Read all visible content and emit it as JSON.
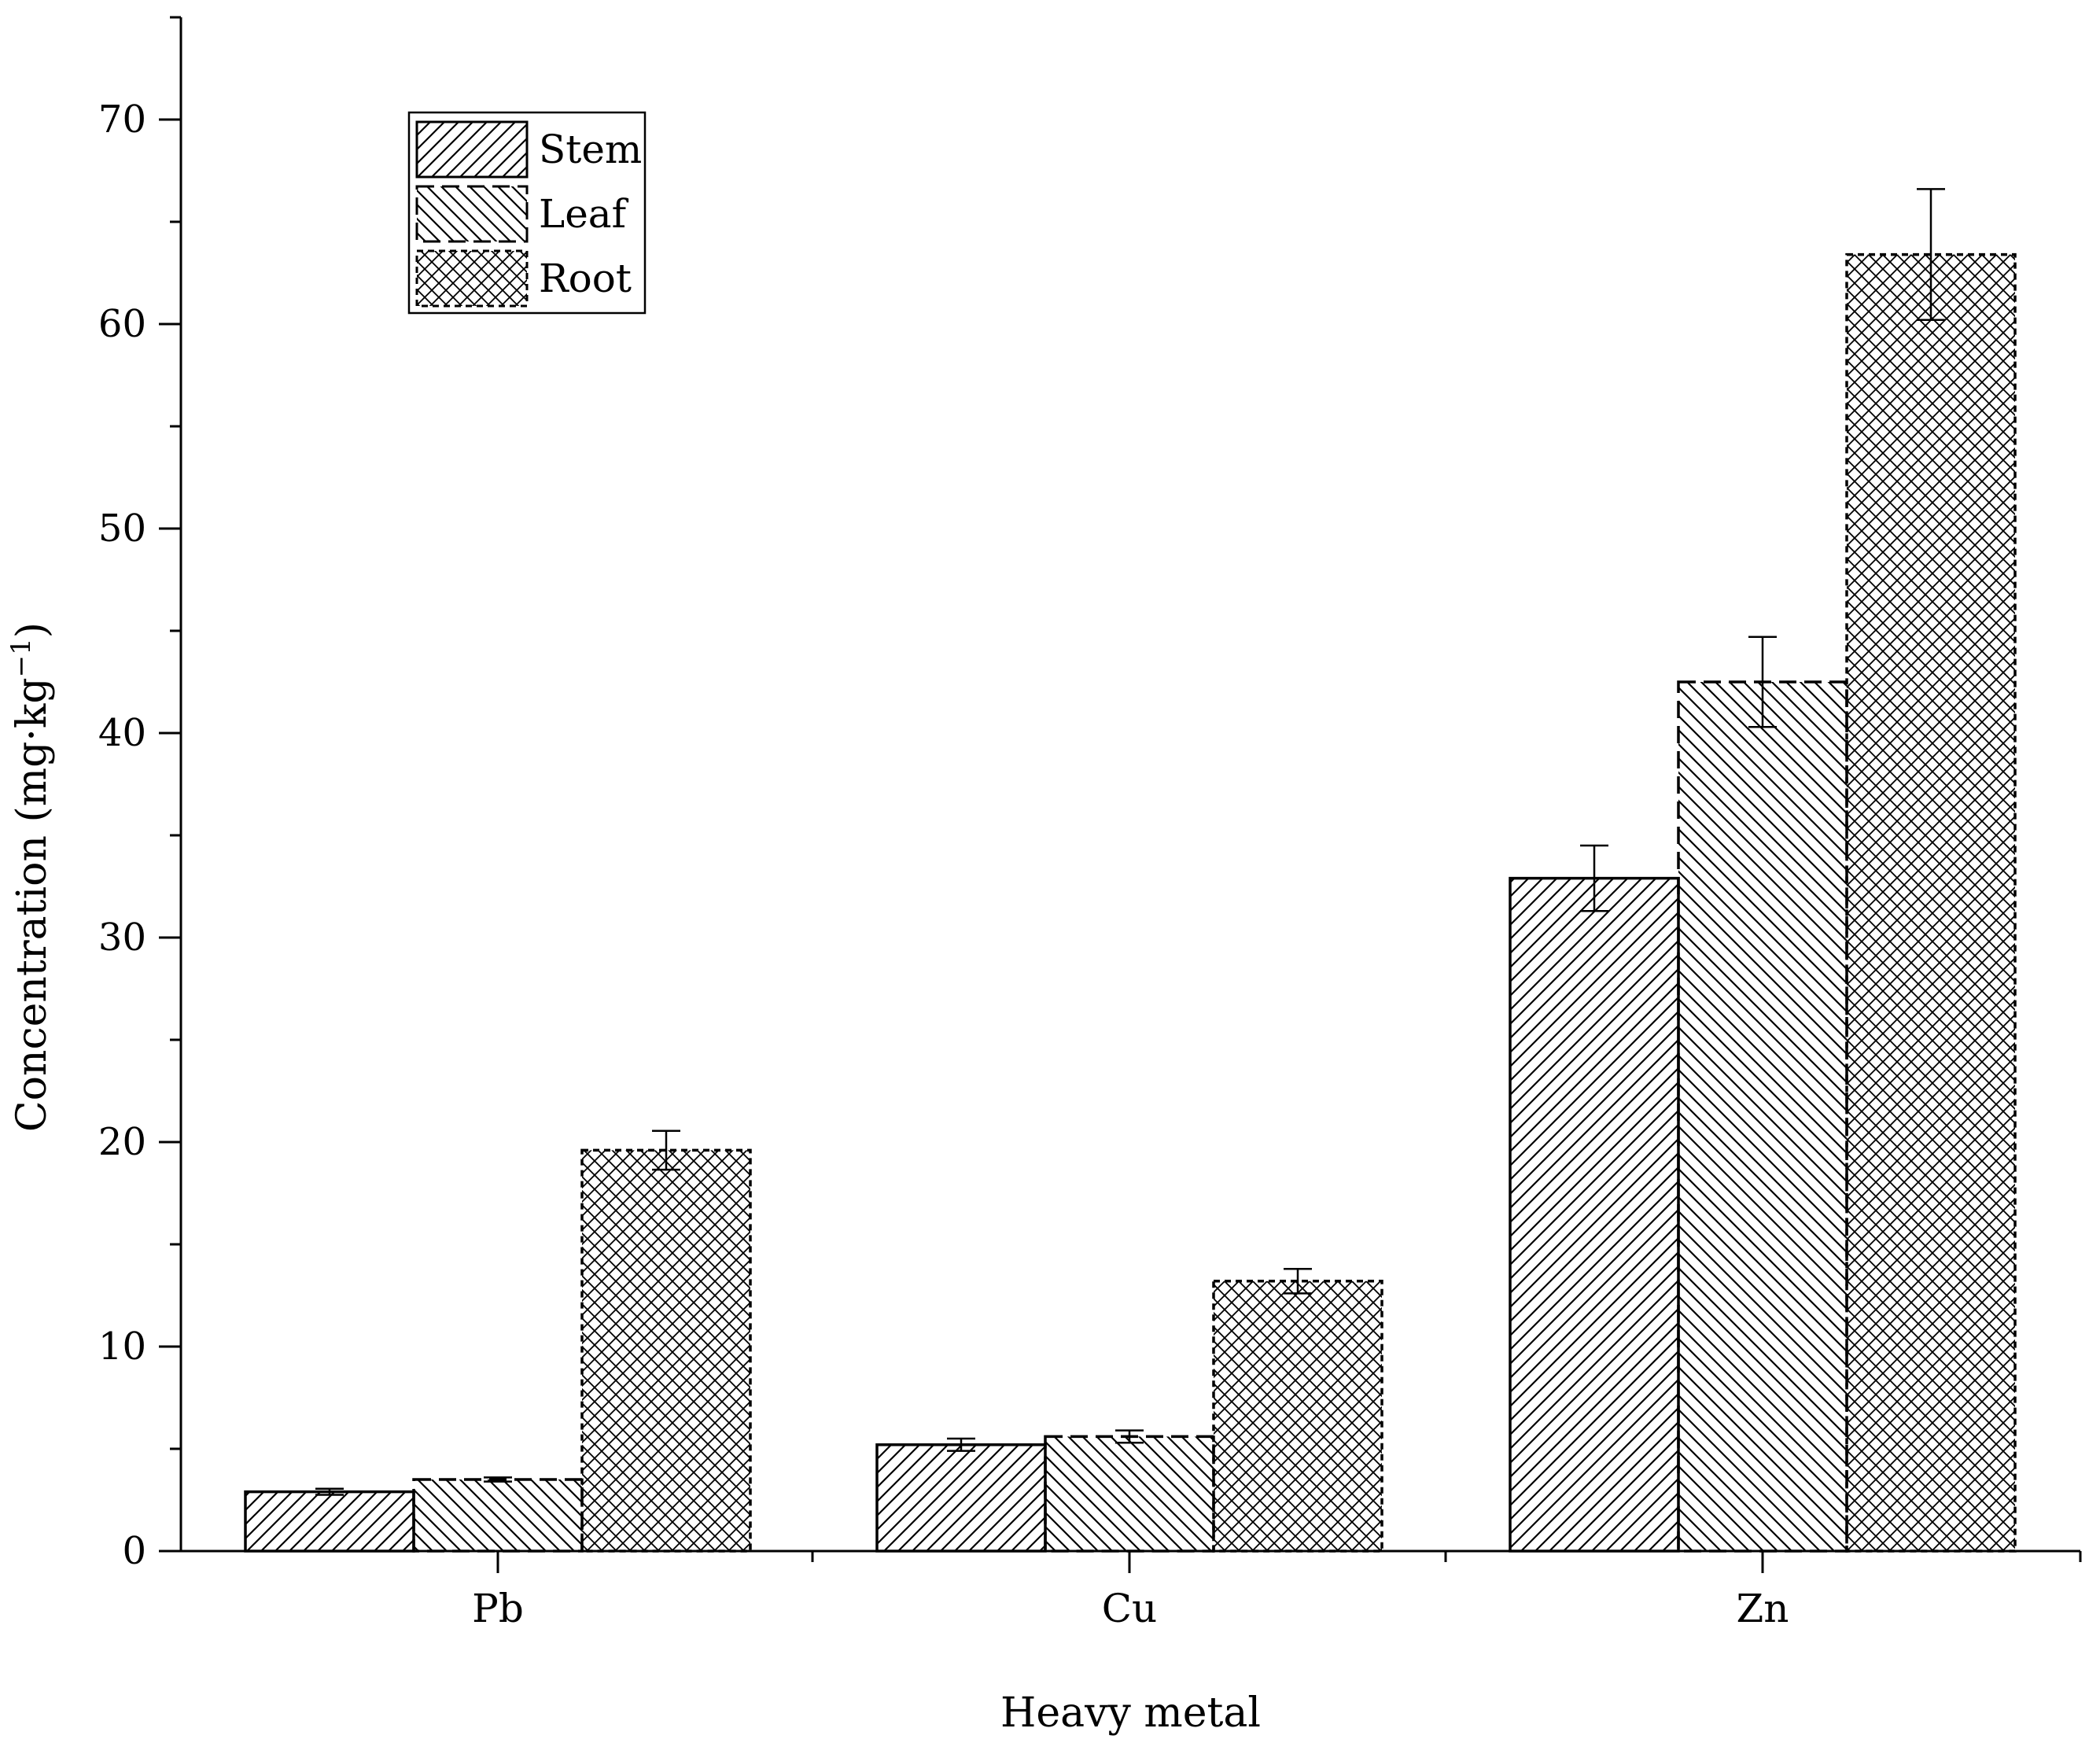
{
  "chart_data": {
    "type": "bar",
    "xlabel": "Heavy metal",
    "ylabel": "Concentration (mg·kg",
    "ylabel_superscript": "−1",
    "ylabel_close": ")",
    "ylim": [
      0,
      75
    ],
    "yticks": [
      0,
      10,
      20,
      30,
      40,
      50,
      60,
      70
    ],
    "categories": [
      "Pb",
      "Cu",
      "Zn"
    ],
    "series": [
      {
        "name": "Stem",
        "pattern": "forward-hatch",
        "border": "solid",
        "values": [
          2.9,
          5.2,
          32.9
        ],
        "errors": [
          0.15,
          0.3,
          1.6
        ]
      },
      {
        "name": "Leaf",
        "pattern": "back-hatch",
        "border": "dashed",
        "values": [
          3.5,
          5.6,
          42.5
        ],
        "errors": [
          0.1,
          0.3,
          2.2
        ]
      },
      {
        "name": "Root",
        "pattern": "cross-hatch",
        "border": "dotted",
        "values": [
          19.6,
          13.2,
          63.4
        ],
        "errors": [
          0.95,
          0.6,
          3.2
        ]
      }
    ],
    "legend_position": "top-left",
    "grid": false
  }
}
